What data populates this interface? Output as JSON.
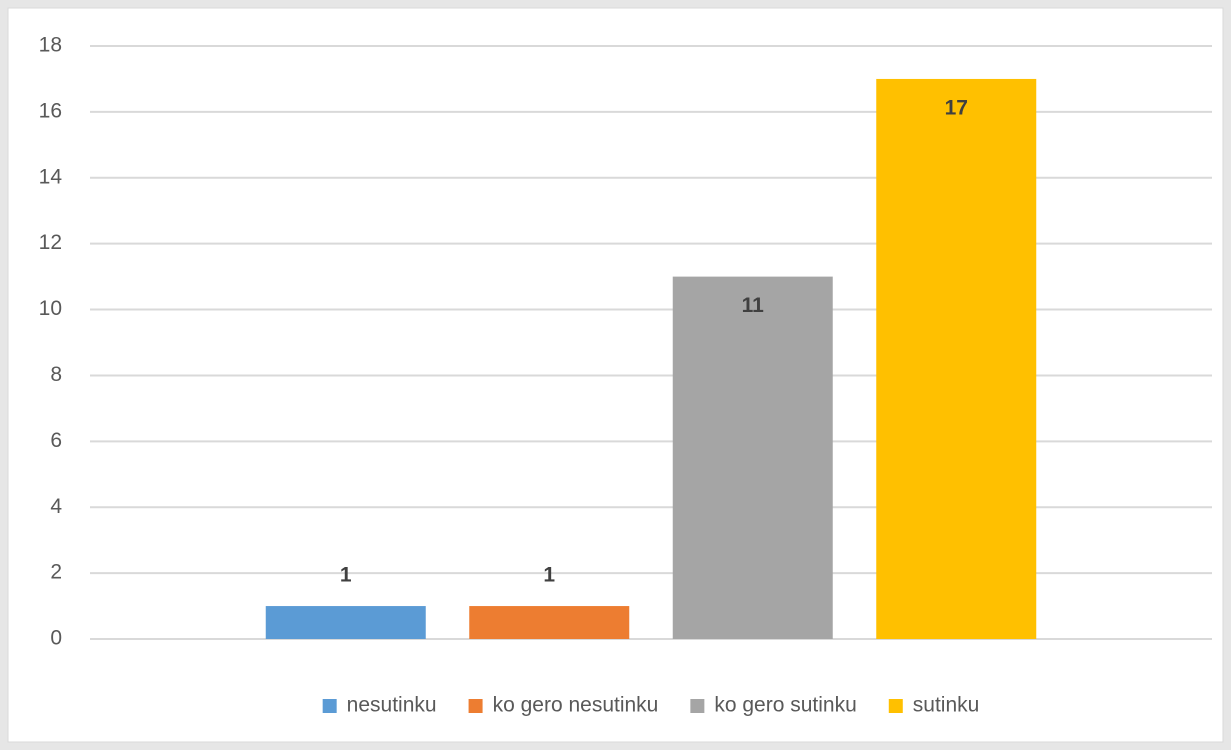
{
  "chart_data": {
    "type": "bar",
    "categories": [
      null
    ],
    "series": [
      {
        "name": "nesutinku",
        "color": "#5b9bd5",
        "values": [
          1
        ]
      },
      {
        "name": "ko gero nesutinku",
        "color": "#ed7d31",
        "values": [
          1
        ]
      },
      {
        "name": "ko gero sutinku",
        "color": "#a5a5a5",
        "values": [
          11
        ]
      },
      {
        "name": "sutinku",
        "color": "#ffc000",
        "values": [
          17
        ]
      }
    ],
    "ylim": [
      0,
      18
    ],
    "yticks": [
      0,
      2,
      4,
      6,
      8,
      10,
      12,
      14,
      16,
      18
    ],
    "grid": true,
    "legend": "bottom",
    "data_labels": true
  }
}
